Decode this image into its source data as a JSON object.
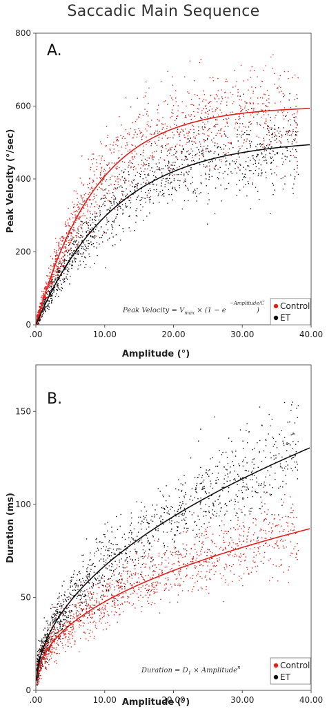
{
  "figure": {
    "title": "Saccadic Main Sequence"
  },
  "chart_data": [
    {
      "type": "scatter",
      "panel_label": "A.",
      "xlabel": "Amplitude (°)",
      "ylabel": "Peak Velocity (°/sec)",
      "xlim": [
        0,
        40
      ],
      "ylim": [
        0,
        800
      ],
      "x_ticks": [
        0,
        10,
        20,
        30,
        40
      ],
      "x_tick_labels": [
        ".00",
        "10.00",
        "20.00",
        "30.00",
        "40.00"
      ],
      "y_ticks": [
        0,
        200,
        400,
        600,
        800
      ],
      "y_tick_labels": [
        "0",
        "200",
        "400",
        "600",
        "800"
      ],
      "grid": false,
      "legend": {
        "position": "bottom-right",
        "entries": [
          "Control",
          "ET"
        ]
      },
      "formula": "Peak Velocity = Vmax × (1 − e^(−Amplitude/C))",
      "series": [
        {
          "name": "Control",
          "color": "#e0201b",
          "fit": {
            "model": "exponential_saturation",
            "Vmax": 600,
            "C": 8.8
          },
          "points_sample": [
            [
              0.5,
              60
            ],
            [
              1,
              100
            ],
            [
              2,
              170
            ],
            [
              3,
              210
            ],
            [
              5,
              290
            ],
            [
              7,
              360
            ],
            [
              10,
              430
            ],
            [
              15,
              500
            ],
            [
              20,
              550
            ],
            [
              25,
              570
            ],
            [
              30,
              600
            ],
            [
              35,
              610
            ]
          ]
        },
        {
          "name": "ET",
          "color": "#111111",
          "fit": {
            "model": "exponential_saturation",
            "Vmax": 510,
            "C": 11.5
          },
          "points_sample": [
            [
              0.5,
              40
            ],
            [
              1,
              60
            ],
            [
              2,
              110
            ],
            [
              3,
              140
            ],
            [
              5,
              210
            ],
            [
              7,
              270
            ],
            [
              10,
              330
            ],
            [
              15,
              400
            ],
            [
              20,
              440
            ],
            [
              25,
              470
            ],
            [
              30,
              480
            ],
            [
              35,
              490
            ]
          ]
        }
      ]
    },
    {
      "type": "scatter",
      "panel_label": "B.",
      "xlabel": "Amplitude (°)",
      "ylabel": "Duration (ms)",
      "xlim": [
        0,
        40
      ],
      "ylim": [
        0,
        175
      ],
      "x_ticks": [
        0,
        10,
        20,
        30,
        40
      ],
      "x_tick_labels": [
        ".00",
        "10.00",
        "20.00",
        "30.00",
        "40.00"
      ],
      "y_ticks": [
        0,
        50,
        100,
        150
      ],
      "y_tick_labels": [
        "0",
        "50",
        "100",
        "150"
      ],
      "grid": false,
      "legend": {
        "position": "bottom-right",
        "entries": [
          "Control",
          "ET"
        ]
      },
      "formula": "Duration = D1 × Amplitude^n",
      "series": [
        {
          "name": "Control",
          "color": "#e0201b",
          "fit": {
            "model": "power",
            "D1": 17.5,
            "n": 0.435
          },
          "points_sample": [
            [
              0.5,
              15
            ],
            [
              1,
              18
            ],
            [
              2,
              24
            ],
            [
              5,
              35
            ],
            [
              10,
              47
            ],
            [
              15,
              57
            ],
            [
              20,
              65
            ],
            [
              25,
              72
            ],
            [
              30,
              78
            ],
            [
              35,
              83
            ]
          ]
        },
        {
          "name": "ET",
          "color": "#111111",
          "fit": {
            "model": "power",
            "D1": 22,
            "n": 0.483
          },
          "points_sample": [
            [
              0.5,
              16
            ],
            [
              1,
              22
            ],
            [
              2,
              31
            ],
            [
              5,
              48
            ],
            [
              10,
              67
            ],
            [
              15,
              82
            ],
            [
              20,
              94
            ],
            [
              25,
              106
            ],
            [
              30,
              116
            ],
            [
              35,
              124
            ]
          ]
        }
      ]
    }
  ]
}
